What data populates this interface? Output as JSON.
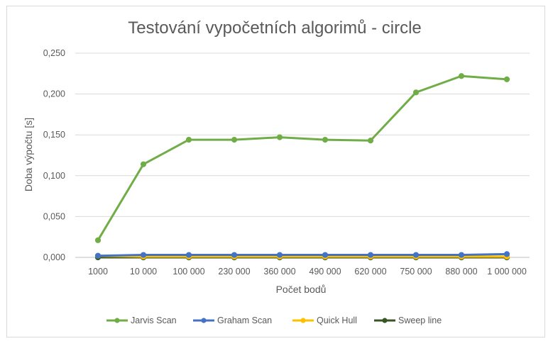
{
  "chart_data": {
    "type": "line",
    "title": "Testování vypočetních algorimů - circle",
    "xlabel": "Počet bodů",
    "ylabel": "Doba výpočtu [s]",
    "categories": [
      "1000",
      "10 000",
      "100 000",
      "230 000",
      "360 000",
      "490 000",
      "620 000",
      "750 000",
      "880 000",
      "1 000 000"
    ],
    "ylim": [
      0,
      0.25
    ],
    "yticks": [
      "0,000",
      "0,050",
      "0,100",
      "0,150",
      "0,200",
      "0,250"
    ],
    "grid": true,
    "legend_position": "bottom",
    "series": [
      {
        "name": "Jarvis Scan",
        "color": "#70ad47",
        "values": [
          0.021,
          0.114,
          0.144,
          0.144,
          0.147,
          0.144,
          0.143,
          0.202,
          0.222,
          0.218
        ]
      },
      {
        "name": "Graham Scan",
        "color": "#4472c4",
        "values": [
          0.002,
          0.003,
          0.003,
          0.003,
          0.003,
          0.003,
          0.003,
          0.003,
          0.003,
          0.004
        ]
      },
      {
        "name": "Quick Hull",
        "color": "#ffc000",
        "values": [
          0.002,
          0.001,
          0.001,
          0.001,
          0.001,
          0.001,
          0.001,
          0.001,
          0.001,
          0.001
        ]
      },
      {
        "name": "Sweep line",
        "color": "#375623",
        "values": [
          0.0,
          0.0,
          0.0,
          0.0,
          0.0,
          0.0,
          0.0,
          0.0,
          0.0,
          0.0
        ]
      }
    ]
  }
}
